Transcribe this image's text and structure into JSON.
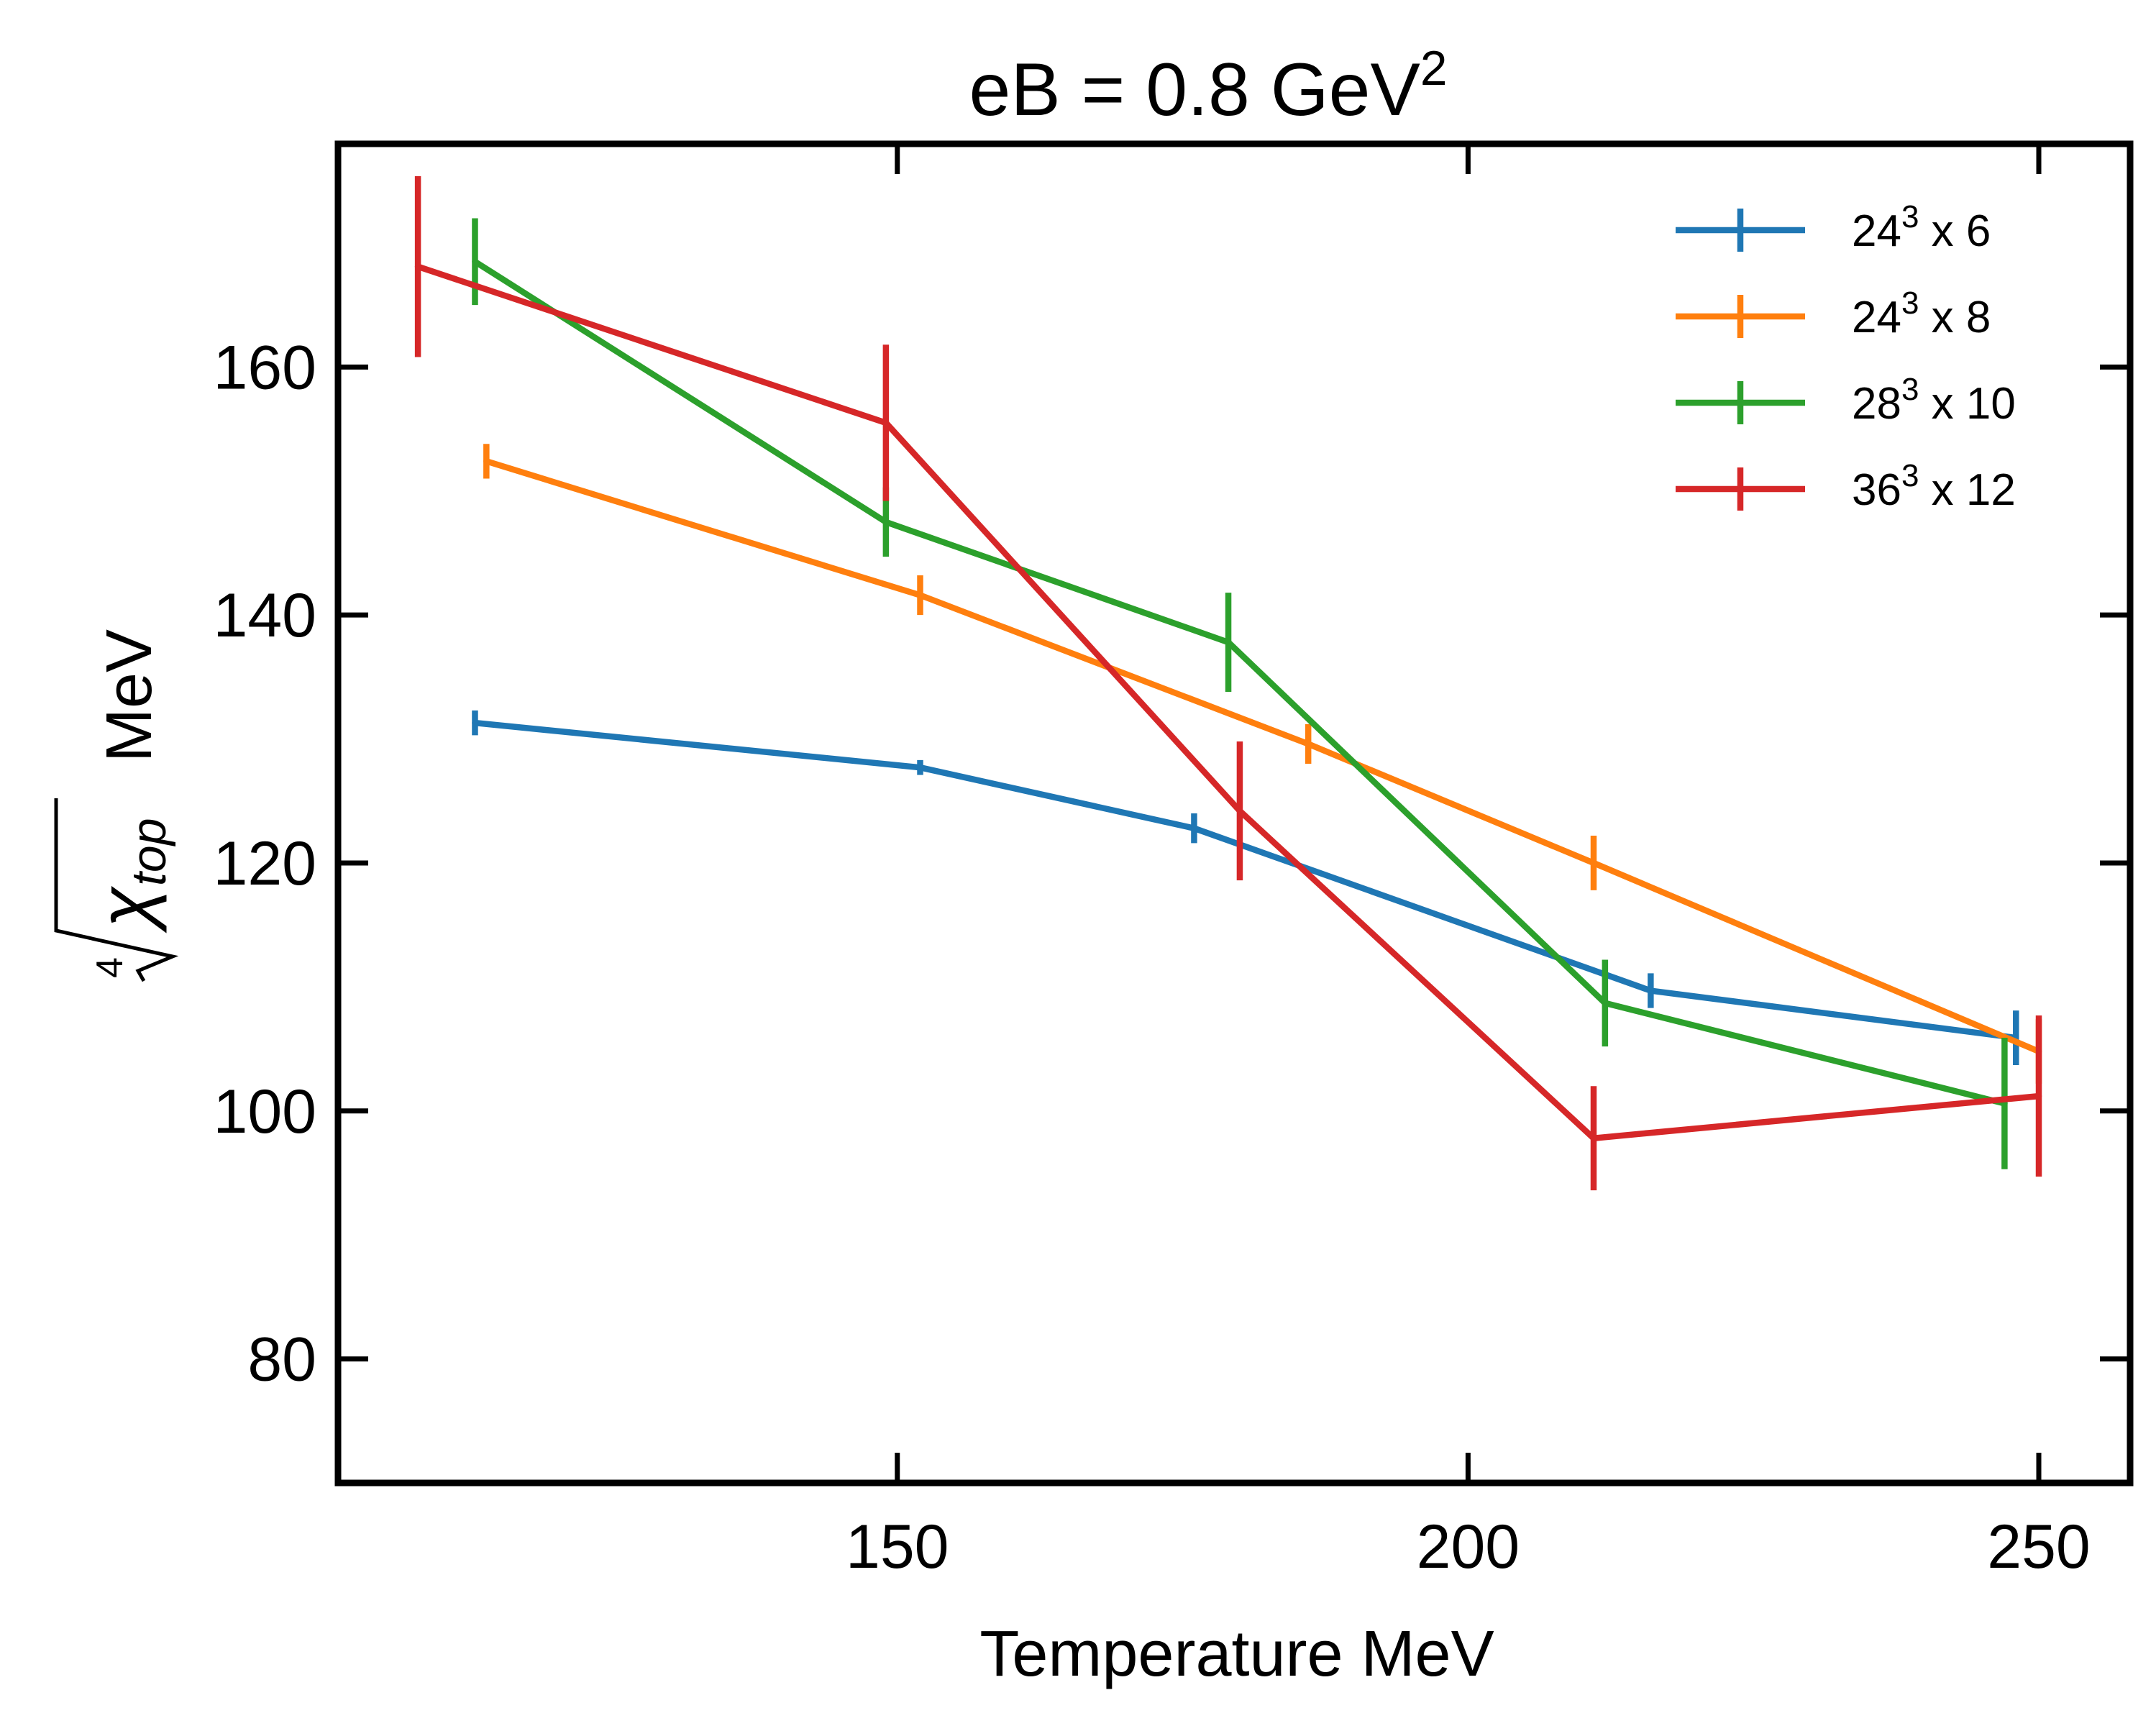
{
  "chart_data": {
    "type": "line",
    "title": {
      "main": "eB  = 0.8 GeV",
      "superscript": "2"
    },
    "xlabel": "Temperature MeV",
    "ylabel": {
      "root_index": "4",
      "symbol": "χ",
      "subscript": "top",
      "unit": "MeV"
    },
    "xlim": [
      101,
      258
    ],
    "ylim": [
      70,
      178
    ],
    "xticks": [
      150,
      200,
      250
    ],
    "yticks": [
      80,
      100,
      120,
      140,
      160
    ],
    "legend_position": "top-right",
    "series": [
      {
        "name": "24^3 x 6",
        "label": {
          "base": "24",
          "sup": "3",
          "rest": " x 6"
        },
        "color": "#1f77b4",
        "x": [
          113,
          152,
          176,
          216,
          248
        ],
        "y": [
          131.3,
          127.7,
          122.8,
          109.7,
          105.9
        ],
        "yerr": [
          1.0,
          0.6,
          1.2,
          1.4,
          2.2
        ]
      },
      {
        "name": "24^3 x 8",
        "label": {
          "base": "24",
          "sup": "3",
          "rest": " x 8"
        },
        "color": "#ff7f0e",
        "x": [
          114,
          152,
          186,
          211,
          250
        ],
        "y": [
          152.4,
          141.6,
          129.6,
          120.0,
          104.8
        ],
        "yerr": [
          1.4,
          1.6,
          1.6,
          2.2,
          2.6
        ]
      },
      {
        "name": "28^3 x 10",
        "label": {
          "base": "28",
          "sup": "3",
          "rest": " x 10"
        },
        "color": "#2ca02c",
        "x": [
          113,
          149,
          179,
          212,
          247
        ],
        "y": [
          168.5,
          147.5,
          137.8,
          108.7,
          100.6
        ],
        "yerr": [
          3.5,
          2.8,
          4.0,
          3.5,
          5.3
        ]
      },
      {
        "name": "36^3 x 12",
        "label": {
          "base": "36",
          "sup": "3",
          "rest": " x 12"
        },
        "color": "#d62728",
        "x": [
          108,
          149,
          180,
          211,
          250
        ],
        "y": [
          168.1,
          155.5,
          124.2,
          97.8,
          101.2
        ],
        "yerr": [
          7.3,
          6.3,
          5.6,
          4.2,
          6.5
        ]
      }
    ]
  }
}
